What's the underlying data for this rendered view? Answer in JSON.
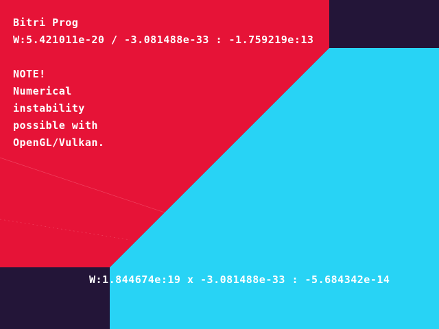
{
  "title": "Bitri Prog",
  "top_readout": "W:5.421011e-20 / -3.081488e-33 : -1.759219e:13",
  "note_lines": [
    "NOTE!",
    "Numerical",
    "instability",
    "possible with",
    "OpenGL/Vulkan."
  ],
  "bottom_readout": "W:1.844674e:19 x -3.081488e-33 : -5.684342e-14",
  "colors": {
    "red": "#e61337",
    "cyan": "#28d3f5",
    "dark": "#231538",
    "text": "#ffffff"
  }
}
